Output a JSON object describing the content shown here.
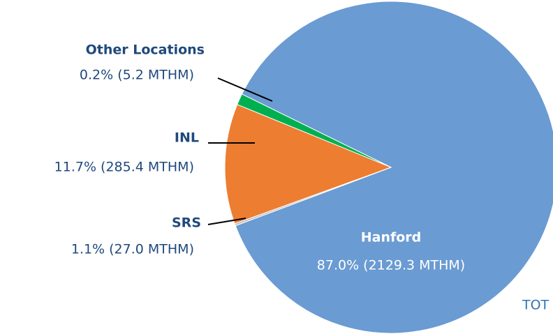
{
  "chart_data": {
    "type": "pie",
    "categories": [
      "Hanford",
      "SRS",
      "INL",
      "Other Locations"
    ],
    "values": [
      87.0,
      1.1,
      11.7,
      0.2
    ],
    "value_labels": [
      "87.0% (2129.3 MTHM)",
      "1.1% (27.0 MTHM)",
      "11.7% (285.4 MTHM)",
      "0.2% (5.2 MTHM)"
    ],
    "colors": [
      "#6a9bd2",
      "#00b050",
      "#ed7d31",
      "#bfbfbf"
    ],
    "annotations": [
      "TOT"
    ]
  }
}
